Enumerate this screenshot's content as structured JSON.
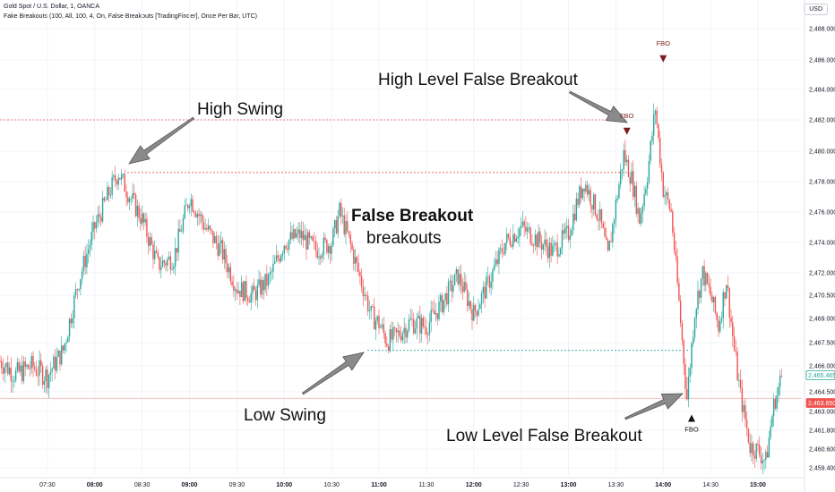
{
  "header": {
    "symbol_line": "Gold Spot / U.S. Dollar, 1, OANDA",
    "indicator_line": "Fake Breakouts (100, All, 100, 4, On, False Breakouts [TradingFinder], Once Per Bar, UTC)"
  },
  "currency": "USD",
  "chart_data": {
    "type": "candlestick",
    "interval": "1 minute",
    "price_range": [
      2458.0,
      2490.0
    ],
    "y_ticks": [
      2459.4,
      2460.6,
      2461.8,
      2463.0,
      2464.5,
      2466.0,
      2467.5,
      2469.0,
      2470.5,
      2472.0,
      2474.0,
      2476.0,
      2478.0,
      2480.0,
      2482.0,
      2484.0,
      2486.0,
      2488.0
    ],
    "y_tick_labels": [
      "2,459.400",
      "2,460.600",
      "2,461.800",
      "2,463.000",
      "2,464.500",
      "2,466.000",
      "2,467.500",
      "2,469.000",
      "2,470.500",
      "2,472.000",
      "2,474.000",
      "2,476.000",
      "2,478.000",
      "2,480.000",
      "2,482.000",
      "2,484.000",
      "2,486.000",
      "2,488.000"
    ],
    "x_tick_labels": [
      "07:30",
      "08:00",
      "08:30",
      "09:00",
      "09:30",
      "10:00",
      "10:30",
      "11:00",
      "11:30",
      "12:00",
      "12:30",
      "13:00",
      "13:30",
      "14:00",
      "14:30",
      "15:00"
    ],
    "close_path": [
      [
        "07:00",
        2466.3
      ],
      [
        "07:10",
        2465.5
      ],
      [
        "07:20",
        2466.0
      ],
      [
        "07:30",
        2465.4
      ],
      [
        "07:40",
        2467.0
      ],
      [
        "07:50",
        2471.5
      ],
      [
        "08:00",
        2475.0
      ],
      [
        "08:10",
        2477.5
      ],
      [
        "08:15",
        2478.6
      ],
      [
        "08:20",
        2477.5
      ],
      [
        "08:30",
        2475.5
      ],
      [
        "08:40",
        2472.5
      ],
      [
        "08:50",
        2473.0
      ],
      [
        "09:00",
        2477.0
      ],
      [
        "09:10",
        2475.0
      ],
      [
        "09:20",
        2473.5
      ],
      [
        "09:30",
        2471.0
      ],
      [
        "09:40",
        2470.5
      ],
      [
        "09:50",
        2471.5
      ],
      [
        "10:00",
        2474.0
      ],
      [
        "10:10",
        2474.5
      ],
      [
        "10:20",
        2473.5
      ],
      [
        "10:30",
        2474.0
      ],
      [
        "10:35",
        2476.0
      ],
      [
        "10:40",
        2474.5
      ],
      [
        "10:50",
        2471.0
      ],
      [
        "10:55",
        2469.2
      ],
      [
        "11:00",
        2468.7
      ],
      [
        "11:05",
        2467.6
      ],
      [
        "11:10",
        2467.8
      ],
      [
        "11:20",
        2468.8
      ],
      [
        "11:30",
        2468.5
      ],
      [
        "11:40",
        2470.0
      ],
      [
        "11:50",
        2471.8
      ],
      [
        "12:00",
        2469.3
      ],
      [
        "12:10",
        2471.5
      ],
      [
        "12:20",
        2474.0
      ],
      [
        "12:30",
        2475.0
      ],
      [
        "12:40",
        2474.2
      ],
      [
        "12:50",
        2473.4
      ],
      [
        "13:00",
        2474.6
      ],
      [
        "13:05",
        2476.5
      ],
      [
        "13:10",
        2478.0
      ],
      [
        "13:20",
        2475.5
      ],
      [
        "13:25",
        2473.0
      ],
      [
        "13:30",
        2476.5
      ],
      [
        "13:35",
        2479.8
      ],
      [
        "13:40",
        2478.2
      ],
      [
        "13:45",
        2475.5
      ],
      [
        "13:50",
        2478.5
      ],
      [
        "13:55",
        2482.8
      ],
      [
        "14:00",
        2477.5
      ],
      [
        "14:05",
        2476.0
      ],
      [
        "14:10",
        2470.0
      ],
      [
        "14:15",
        2464.0
      ],
      [
        "14:20",
        2469.5
      ],
      [
        "14:25",
        2472.0
      ],
      [
        "14:30",
        2470.5
      ],
      [
        "14:35",
        2468.5
      ],
      [
        "14:40",
        2471.5
      ],
      [
        "14:45",
        2467.0
      ],
      [
        "14:50",
        2463.5
      ],
      [
        "14:55",
        2460.8
      ],
      [
        "15:00",
        2460.5
      ],
      [
        "15:05",
        2459.8
      ],
      [
        "15:10",
        2463.5
      ],
      [
        "15:15",
        2465.4
      ]
    ],
    "levels": {
      "high_swing": 2478.6,
      "high_fbo_level": 2482.0,
      "low_swing": 2467.0,
      "low_fbo_level": 2464.0
    },
    "price_badges": [
      {
        "price": 2465.465,
        "label": "2,465.465",
        "color": "#26a69a"
      },
      {
        "price": 2463.65,
        "label": "2,463.650",
        "color": "#ef5350"
      }
    ],
    "fbo_markers": [
      {
        "time": "13:37",
        "price": 2481.5,
        "direction": "down",
        "label": "FBO"
      },
      {
        "time": "14:00",
        "price": 2486.3,
        "direction": "down",
        "label": "FBO"
      },
      {
        "time": "14:18",
        "price": 2462.8,
        "direction": "up",
        "label": "FBO"
      }
    ],
    "annotations": {
      "high_swing": "High Swing",
      "high_fbo": "High Level False Breakout",
      "title": "False Breakout",
      "subtitle": "breakouts",
      "low_swing": "Low Swing",
      "low_fbo": "Low Level False Breakout"
    },
    "colors": {
      "up": "#26a69a",
      "down": "#ef5350",
      "fbo": "#7b1d1d",
      "fbo_up": "#111111",
      "high_line": "#ef5350",
      "low_line": "#26a69a",
      "arrow": "#8a8a8a"
    }
  }
}
